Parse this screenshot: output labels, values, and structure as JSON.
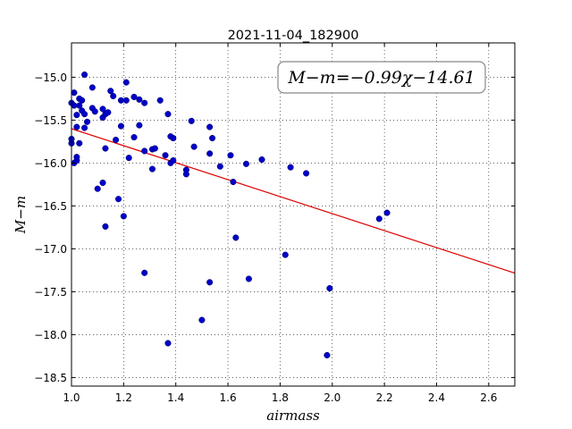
{
  "chart_data": {
    "type": "scatter",
    "title": "2021-11-04_182900",
    "xlabel": "airmass",
    "ylabel": "M−m",
    "annotation": "M−m=−0.99χ−14.61",
    "xlim": [
      1.0,
      2.7
    ],
    "ylim": [
      -18.6,
      -14.6
    ],
    "y_inverted": true,
    "grid": true,
    "x_ticks": [
      "1.0",
      "1.2",
      "1.4",
      "1.6",
      "1.8",
      "2.0",
      "2.2",
      "2.4",
      "2.6"
    ],
    "y_ticks": [
      "−15.0",
      "−15.5",
      "−16.0",
      "−16.5",
      "−17.0",
      "−17.5",
      "−18.0",
      "−18.5"
    ],
    "point_color": "#0000c8",
    "line_color": "#dd0000",
    "fit": {
      "slope": -0.99,
      "intercept": -14.61
    },
    "points": [
      [
        1.0,
        -15.3
      ],
      [
        1.0,
        -15.72
      ],
      [
        1.0,
        -15.77
      ],
      [
        1.01,
        -15.18
      ],
      [
        1.01,
        -15.33
      ],
      [
        1.01,
        -16.0
      ],
      [
        1.02,
        -15.58
      ],
      [
        1.02,
        -15.93
      ],
      [
        1.02,
        -15.97
      ],
      [
        1.02,
        -15.44
      ],
      [
        1.03,
        -15.25
      ],
      [
        1.03,
        -15.33
      ],
      [
        1.03,
        -15.77
      ],
      [
        1.04,
        -15.27
      ],
      [
        1.04,
        -15.39
      ],
      [
        1.05,
        -15.43
      ],
      [
        1.05,
        -15.59
      ],
      [
        1.05,
        -14.97
      ],
      [
        1.06,
        -15.52
      ],
      [
        1.08,
        -15.36
      ],
      [
        1.08,
        -15.12
      ],
      [
        1.09,
        -15.4
      ],
      [
        1.1,
        -16.3
      ],
      [
        1.12,
        -15.37
      ],
      [
        1.12,
        -15.47
      ],
      [
        1.12,
        -16.23
      ],
      [
        1.13,
        -16.74
      ],
      [
        1.13,
        -15.43
      ],
      [
        1.13,
        -15.83
      ],
      [
        1.14,
        -15.41
      ],
      [
        1.15,
        -15.16
      ],
      [
        1.16,
        -15.22
      ],
      [
        1.17,
        -15.73
      ],
      [
        1.18,
        -16.42
      ],
      [
        1.19,
        -15.27
      ],
      [
        1.19,
        -15.57
      ],
      [
        1.2,
        -16.62
      ],
      [
        1.21,
        -15.06
      ],
      [
        1.21,
        -15.27
      ],
      [
        1.22,
        -15.94
      ],
      [
        1.24,
        -15.7
      ],
      [
        1.24,
        -15.23
      ],
      [
        1.26,
        -15.26
      ],
      [
        1.26,
        -15.56
      ],
      [
        1.28,
        -17.28
      ],
      [
        1.28,
        -15.86
      ],
      [
        1.28,
        -15.3
      ],
      [
        1.31,
        -15.84
      ],
      [
        1.31,
        -16.07
      ],
      [
        1.32,
        -15.83
      ],
      [
        1.34,
        -15.27
      ],
      [
        1.36,
        -15.91
      ],
      [
        1.37,
        -15.43
      ],
      [
        1.37,
        -18.1
      ],
      [
        1.38,
        -16.0
      ],
      [
        1.38,
        -15.69
      ],
      [
        1.39,
        -15.71
      ],
      [
        1.39,
        -15.97
      ],
      [
        1.44,
        -16.08
      ],
      [
        1.44,
        -16.13
      ],
      [
        1.46,
        -15.51
      ],
      [
        1.47,
        -15.81
      ],
      [
        1.5,
        -17.83
      ],
      [
        1.53,
        -15.58
      ],
      [
        1.53,
        -17.39
      ],
      [
        1.54,
        -15.71
      ],
      [
        1.53,
        -15.89
      ],
      [
        1.57,
        -16.04
      ],
      [
        1.61,
        -15.91
      ],
      [
        1.62,
        -16.22
      ],
      [
        1.63,
        -16.87
      ],
      [
        1.67,
        -16.01
      ],
      [
        1.68,
        -17.35
      ],
      [
        1.73,
        -15.96
      ],
      [
        1.82,
        -17.07
      ],
      [
        1.84,
        -16.05
      ],
      [
        1.9,
        -16.12
      ],
      [
        1.98,
        -18.24
      ],
      [
        1.99,
        -17.46
      ],
      [
        2.18,
        -16.65
      ],
      [
        2.21,
        -16.58
      ]
    ]
  }
}
